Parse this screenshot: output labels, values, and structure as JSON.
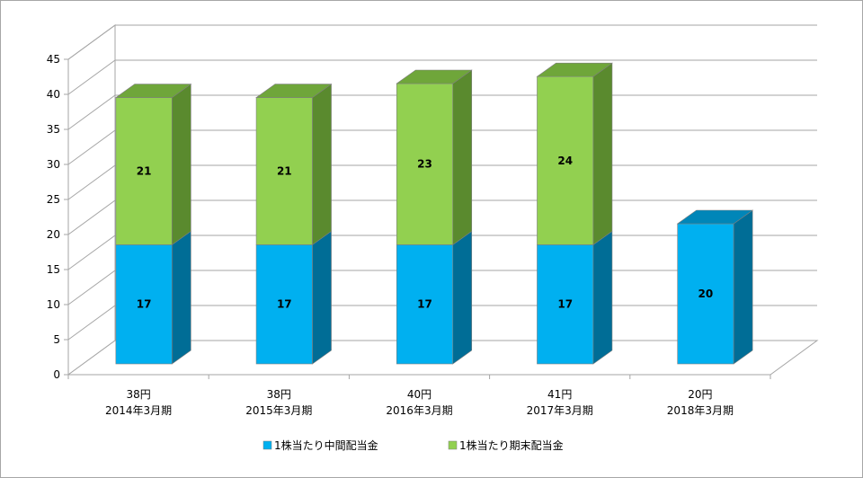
{
  "chart_data": {
    "type": "bar",
    "stacked": true,
    "three_d": true,
    "categories": [
      [
        "38円",
        "2014年3月期"
      ],
      [
        "38円",
        "2015年3月期"
      ],
      [
        "40円",
        "2016年3月期"
      ],
      [
        "41円",
        "2017年3月期"
      ],
      [
        "20円",
        "2018年3月期"
      ]
    ],
    "series": [
      {
        "name": "1株当たり中間配当金",
        "values": [
          17,
          17,
          17,
          17,
          20
        ],
        "color": "#00b0f0",
        "side_color": "#006d96",
        "top_color": "#0086b8"
      },
      {
        "name": "1株当たり期末配当金",
        "values": [
          21,
          21,
          23,
          24,
          null
        ],
        "color": "#92d050",
        "side_color": "#5a8a2e",
        "top_color": "#6fa63a"
      }
    ],
    "data_labels": [
      [
        "17",
        "17",
        "17",
        "17",
        "20"
      ],
      [
        "21",
        "21",
        "23",
        "24",
        ""
      ]
    ],
    "y_ticks": [
      "0",
      "5",
      "10",
      "15",
      "20",
      "25",
      "30",
      "35",
      "40",
      "45"
    ],
    "ylim": [
      0,
      45
    ],
    "grid": true,
    "legend_position": "bottom"
  }
}
